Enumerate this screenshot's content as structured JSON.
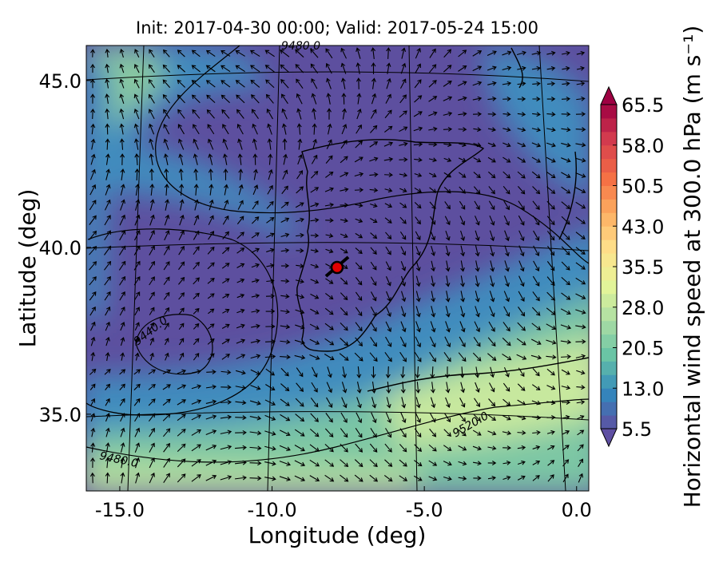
{
  "title": "Init: 2017-04-30 00:00; Valid: 2017-05-24 15:00",
  "x_axis": {
    "label": "Longitude (deg)",
    "lim": [
      -16.1,
      0.4
    ],
    "ticks": [
      {
        "value": -15,
        "label": "-15.0"
      },
      {
        "value": -10,
        "label": "-10.0"
      },
      {
        "value": -5,
        "label": "-5.0"
      },
      {
        "value": 0,
        "label": "0.0"
      }
    ]
  },
  "y_axis": {
    "label": "Latitude (deg)",
    "lim": [
      32.7,
      46.05
    ],
    "ticks": [
      {
        "value": 35,
        "label": "35.0"
      },
      {
        "value": 40,
        "label": "40.0"
      },
      {
        "value": 45,
        "label": "45.0"
      }
    ]
  },
  "colorbar": {
    "label": "Horizontal wind speed at 300.0 hPa (m s⁻¹)",
    "lim": [
      5.5,
      65.5
    ],
    "ticks": [
      5.5,
      {
        "value": 13,
        "label": "13.0"
      },
      20.5,
      {
        "value": 28,
        "label": "28.0"
      },
      35.5,
      {
        "value": 43,
        "label": "43.0"
      },
      50.5,
      {
        "value": 58,
        "label": "58.0"
      },
      65.5
    ]
  },
  "contour_labels": [
    "9480.0",
    "9440.0",
    "9480.0",
    "9520.0"
  ]
}
